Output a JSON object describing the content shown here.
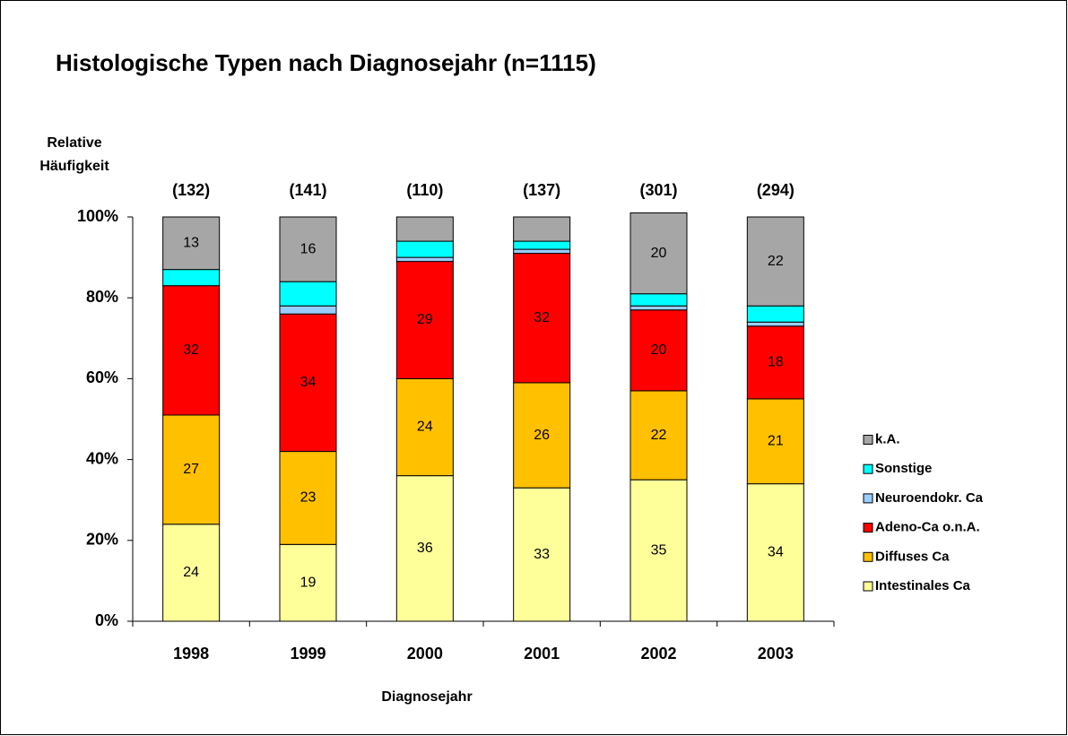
{
  "chart_data": {
    "type": "stacked_bar",
    "title": "Histologische Typen nach Diagnosejahr (n=1115)",
    "ylabel": [
      "Relative",
      "Häufigkeit"
    ],
    "xlabel": "Diagnosejahr",
    "categories": [
      "1998",
      "1999",
      "2000",
      "2001",
      "2002",
      "2003"
    ],
    "annotations": [
      "(132)",
      "(141)",
      "(110)",
      "(137)",
      "(301)",
      "(294)"
    ],
    "series": [
      {
        "name": "Intestinales Ca",
        "color": "#ffff99",
        "values": [
          24,
          19,
          36,
          33,
          35,
          34
        ],
        "value_labels": [
          "24",
          "19",
          "36",
          "33",
          "35",
          "34"
        ]
      },
      {
        "name": "Diffuses Ca",
        "color": "#ffc000",
        "values": [
          27,
          23,
          24,
          26,
          22,
          21
        ],
        "value_labels": [
          "27",
          "23",
          "24",
          "26",
          "22",
          "21"
        ]
      },
      {
        "name": "Adeno-Ca o.n.A.",
        "color": "#ff0000",
        "values": [
          32,
          34,
          29,
          32,
          20,
          18
        ],
        "value_labels": [
          "32",
          "34",
          "29",
          "32",
          "20",
          "18"
        ]
      },
      {
        "name": "Neuroendokr. Ca",
        "color": "#99ccff",
        "values": [
          0,
          2,
          1,
          1,
          1,
          1
        ],
        "value_labels": [
          null,
          null,
          null,
          null,
          null,
          null
        ]
      },
      {
        "name": "Sonstige",
        "color": "#00ffff",
        "values": [
          4,
          6,
          4,
          2,
          3,
          4
        ],
        "value_labels": [
          null,
          null,
          null,
          null,
          null,
          null
        ]
      },
      {
        "name": "k.A.",
        "color": "#a6a6a6",
        "values": [
          13,
          16,
          6,
          6,
          20,
          22
        ],
        "value_labels": [
          "13",
          "16",
          null,
          null,
          "20",
          "22"
        ]
      }
    ],
    "ylim": [
      0,
      100
    ],
    "yticks": [
      {
        "value": 0,
        "label": "0%"
      },
      {
        "value": 20,
        "label": "20%"
      },
      {
        "value": 40,
        "label": "40%"
      },
      {
        "value": 60,
        "label": "60%"
      },
      {
        "value": 80,
        "label": "80%"
      },
      {
        "value": 100,
        "label": "100%"
      }
    ],
    "legend": "right"
  }
}
